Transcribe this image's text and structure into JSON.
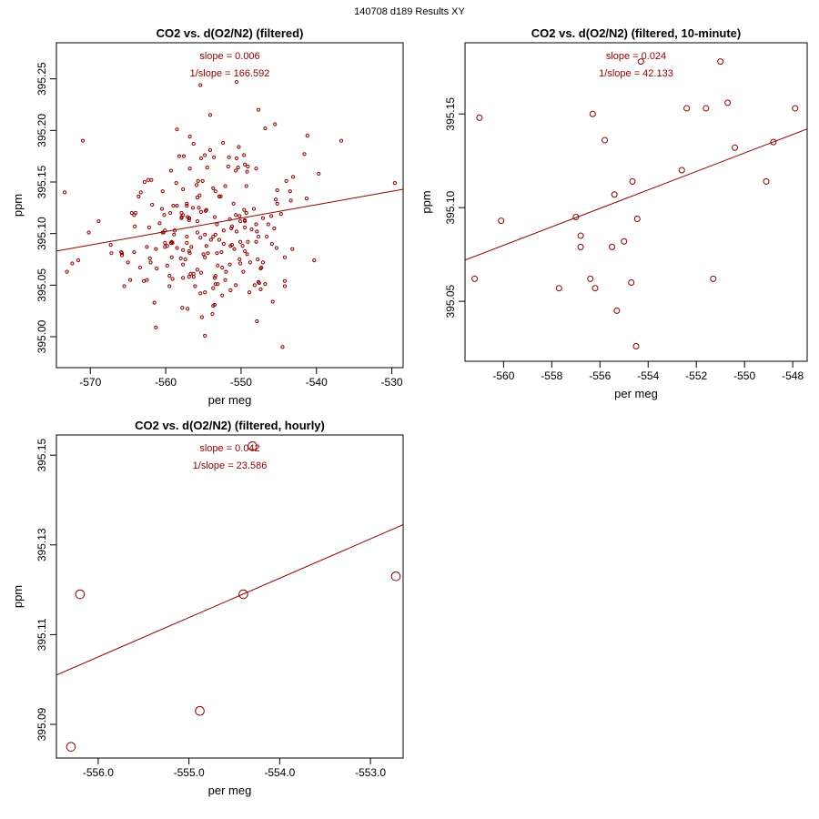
{
  "page_title": "140708   d189   Results XY",
  "colors": {
    "accent": "#8b0000",
    "axis": "#000000",
    "background": "#ffffff"
  },
  "chart_data": [
    {
      "type": "scatter",
      "id": "all",
      "title": "CO2 vs. d(O2/N2) (filtered)",
      "xlabel": "per meg",
      "ylabel": "ppm",
      "xlim": [
        -574.5,
        -528.5
      ],
      "ylim": [
        394.97,
        395.285
      ],
      "xticks": [
        -570,
        -560,
        -550,
        -540,
        -530
      ],
      "yticks": [
        395.0,
        395.05,
        395.1,
        395.15,
        395.2,
        395.25
      ],
      "xtick_labels": [
        "-570",
        "-560",
        "-550",
        "-540",
        "-530"
      ],
      "ytick_labels": [
        "395.00",
        "395.05",
        "395.10",
        "395.15",
        "395.20",
        "395.25"
      ],
      "annotations": [
        "slope = 0.006",
        "1/slope = 166.592"
      ],
      "fit_line": {
        "x": [
          -574.5,
          -528.5
        ],
        "y": [
          395.083,
          395.143
        ]
      },
      "points": {
        "x": [
          -573.4,
          -573.1,
          -572.4,
          -571.6,
          -571,
          -570.2,
          -567.2,
          -565.8,
          -565.5,
          -564.5,
          -562.9,
          -561.3,
          -558.5,
          -555.4,
          -554.8,
          -554.5,
          -553.8,
          -552.4,
          -550.6,
          -549.1,
          -547.7,
          -546.8,
          -545.8,
          -544.5,
          -543.1,
          -541.2,
          -540.3,
          -539.7,
          -536.7,
          -529.6,
          -568.9,
          -567.3,
          -565.9,
          -564.7,
          -565,
          -563.3,
          -559.5,
          -555.4,
          -554.1,
          -552.6,
          -551.4,
          -547.1,
          -545.2,
          -543.4,
          -541.6,
          -553.6,
          -553.7,
          -549.6,
          -548,
          -547.9,
          -547.7,
          -545.4,
          -545.5,
          -554,
          -550.7,
          -550.7,
          -551.2,
          -553.2,
          -549.3,
          -555.5,
          -554.8,
          -556.1,
          -553.4,
          -557.1,
          -557.7,
          -559.3,
          -561.5,
          -562.5,
          -564.2,
          -553.1,
          -545.3,
          -547.4,
          -556.8,
          -556.3,
          -560.1,
          -557.8,
          -555.2,
          -559,
          -556.6,
          -563.4,
          -557.7,
          -548.9,
          -555.3,
          -547.3,
          -554.8,
          -559.2,
          -550.6,
          -549.6,
          -559.5,
          -562.8,
          -557.2,
          -553.2,
          -551.3,
          -556.9,
          -557.2,
          -549.7,
          -553.1,
          -557.2,
          -559.2,
          -557.6,
          -555.8,
          -554.4,
          -559.1,
          -549.5,
          -558.5,
          -555.7,
          -555.6,
          -548.8,
          -549.3,
          -550.1,
          -551.6,
          -553.7,
          -556.3,
          -557.7,
          -551.5,
          -550.4,
          -556.9,
          -553.4,
          -549.5,
          -551.5,
          -564,
          -560.5,
          -550.2,
          -560.2,
          -558.9,
          -553.4,
          -546.8,
          -562.2,
          -549.2,
          -544.2,
          -554.8,
          -549.1,
          -553.7,
          -555.9,
          -558,
          -554.1,
          -549.5,
          -550.1,
          -547.8,
          -553.4,
          -549.8,
          -552.3,
          -546.4,
          -557.4,
          -550.3,
          -550.7,
          -555,
          -553.5,
          -557.9,
          -552.1,
          -548.3,
          -557.1,
          -562.3,
          -558.2,
          -557.9,
          -555.8,
          -556.9,
          -554.6,
          -552.9,
          -552.1,
          -560.8,
          -557.7,
          -562,
          -554.8,
          -558.8,
          -552.5,
          -550.6,
          -553.7,
          -551,
          -555.1,
          -545.9,
          -544.2,
          -549.5,
          -561.2,
          -559.8,
          -548.2,
          -556.7,
          -547.7,
          -554.7,
          -556.8,
          -560.1,
          -562.1,
          -559.8,
          -547.1,
          -552.3,
          -549.5,
          -557.9,
          -560.1,
          -556.9,
          -552.5,
          -555.4,
          -551.4,
          -560.3,
          -555.8,
          -556.4,
          -547.6,
          -544,
          -545.2,
          -543.2,
          -541.3,
          -543.5,
          -548,
          -550.9,
          -552,
          -553.5,
          -561.9,
          -561.3,
          -556.3,
          -556.8,
          -564.1,
          -565.8,
          -560.4,
          -559.4,
          -559.3,
          -557.7,
          -556.9,
          -558.6,
          -555.3,
          -551.7,
          -552.7,
          -550.1,
          -549.2,
          -547.9,
          -544.2,
          -547.4,
          -546,
          -548.6,
          -551.2,
          -553.5,
          -554.6,
          -555.8,
          -557.2,
          -558.5,
          -559.1,
          -560.4,
          -562.5,
          -563.6,
          -548,
          -546.6,
          -545.6,
          -544.7,
          -550.2,
          -552.9,
          -555.3,
          -561.8,
          -564.2
        ],
        "y": [
          395.14,
          395.063,
          395.071,
          395.074,
          395.19,
          395.101,
          395.081,
          395.079,
          395.049,
          395.12,
          395.054,
          395.009,
          395.201,
          395.244,
          395.176,
          395.164,
          395.022,
          395.188,
          395.247,
          395.165,
          395.22,
          395.202,
          395.034,
          394.99,
          395.155,
          395.195,
          395.074,
          395.158,
          395.19,
          395.149,
          395.112,
          395.089,
          395.082,
          395.055,
          395.072,
          395.14,
          395.059,
          395.042,
          395.215,
          395.082,
          395.045,
          395.115,
          395.142,
          395.132,
          395.177,
          395.174,
          395.03,
          395.123,
          395.109,
          395.015,
          395.053,
          395.133,
          395.206,
          395.094,
          395.161,
          395.05,
          395.089,
          395.081,
          395.12,
          395.137,
          395.001,
          395.049,
          395.051,
          395.027,
          395.118,
          395.161,
          395.033,
          395.055,
          395.118,
          395.069,
          395.086,
          395.046,
          395.081,
          395.058,
          395.091,
          395.028,
          395.019,
          395.127,
          395.087,
          395.067,
          395.057,
          395.043,
          395.173,
          395.067,
          395.077,
          395.092,
          395.173,
          395.176,
          395.049,
          395.15,
          395.127,
          395.109,
          395.105,
          395.058,
          395.129,
          395.063,
          395.051,
          395.097,
          395.077,
          395.175,
          395.112,
          395.081,
          395.056,
          395.083,
          395.086,
          395.151,
          395.125,
          395.072,
          395.146,
          395.092,
          395.174,
          395.047,
          395.061,
          395.143,
          395.114,
          395.164,
          395.115,
          395.141,
          395.167,
          395.07,
          395.12,
          395.124,
          395.117,
          395.118,
          395.099,
          395.059,
          395.051,
          395.106,
          395.08,
          395.054,
          395.043,
          395.092,
          395.144,
          395.147,
          395.076,
          395.181,
          395.106,
          395.071,
          395.075,
          395.099,
          395.088,
          395.103,
          395.109,
          395.075,
          395.184,
          395.118,
          395.08,
          395.057,
          395.116,
          395.146,
          395.124,
          395.116,
          395.152,
          395.175,
          395.12,
          395.135,
          395.115,
          395.123,
          395.136,
          395.055,
          395.11,
          395.084,
          395.072,
          395.099,
          395.103,
          395.04,
          395.102,
          395.097,
          395.129,
          395.151,
          395.09,
          395.049,
          395.113,
          395.066,
          395.088,
          395.05,
          395.061,
          395.097,
          395.122,
          395.163,
          395.087,
          395.076,
          395.069,
          395.072,
          395.09,
          395.112,
          395.115,
          395.103,
          395.083,
          395.067,
          395.096,
          395.088,
          395.101,
          395.065,
          395.125,
          395.052,
          395.151,
          395.129,
          395.085,
          395.134,
          395.141,
          395.163,
          395.085,
          395.063,
          395.031,
          395.152,
          395.085,
          395.187,
          395.194,
          395.107,
          395.081,
          395.141,
          395.12,
          395.091,
          395.07,
          395.113,
          395.149,
          395.121,
          395.165,
          395.136,
          395.112,
          395.16,
          395.102,
          395.077,
          395.066,
          395.117,
          395.104,
          395.107,
          395.116,
          395.088,
          395.101,
          395.091,
          395.127,
          395.091,
          395.101,
          395.087,
          395.136,
          395.092,
          395.097,
          395.105,
          395.119,
          395.075,
          395.094,
          395.062,
          395.128,
          395.082
        ]
      },
      "point_size": "small"
    },
    {
      "type": "scatter",
      "id": "ten_minute",
      "title": "CO2 vs. d(O2/N2) (filtered, 10-minute)",
      "xlabel": "per meg",
      "ylabel": "ppm",
      "xlim": [
        -561.6,
        -547.4
      ],
      "ylim": [
        395.018,
        395.188
      ],
      "xticks": [
        -560,
        -558,
        -556,
        -554,
        -552,
        -550,
        -548
      ],
      "yticks": [
        395.05,
        395.1,
        395.15
      ],
      "xtick_labels": [
        "-560",
        "-558",
        "-556",
        "-554",
        "-552",
        "-550",
        "-548"
      ],
      "ytick_labels": [
        "395.05",
        "395.10",
        "395.15"
      ],
      "annotations": [
        "slope = 0.024",
        "1/slope = 42.133"
      ],
      "fit_line": {
        "x": [
          -561.6,
          -547.4
        ],
        "y": [
          395.072,
          395.142
        ]
      },
      "points": {
        "x": [
          -561.2,
          -561.0,
          -560.1,
          -557.7,
          -557.0,
          -556.8,
          -556.8,
          -556.4,
          -556.3,
          -556.2,
          -555.8,
          -555.5,
          -555.4,
          -555.3,
          -555.0,
          -554.7,
          -554.65,
          -554.5,
          -554.45,
          -554.3,
          -552.6,
          -552.4,
          -551.6,
          -551.3,
          -551.0,
          -550.7,
          -550.4,
          -549.1,
          -548.8,
          -547.9
        ],
        "y": [
          395.062,
          395.148,
          395.093,
          395.057,
          395.095,
          395.079,
          395.085,
          395.062,
          395.15,
          395.057,
          395.136,
          395.079,
          395.107,
          395.045,
          395.082,
          395.06,
          395.114,
          395.026,
          395.094,
          395.178,
          395.12,
          395.153,
          395.153,
          395.062,
          395.178,
          395.156,
          395.132,
          395.114,
          395.135,
          395.153
        ]
      },
      "point_size": "medium"
    },
    {
      "type": "scatter",
      "id": "hourly",
      "title": "CO2 vs. d(O2/N2) (filtered, hourly)",
      "xlabel": "per meg",
      "ylabel": "ppm",
      "xlim": [
        -556.46,
        -552.64
      ],
      "ylim": [
        395.0825,
        395.1545
      ],
      "xticks": [
        -556.0,
        -555.0,
        -554.0,
        -553.0
      ],
      "yticks": [
        395.09,
        395.11,
        395.13,
        395.15
      ],
      "xtick_labels": [
        "-556.0",
        "-555.0",
        "-554.0",
        "-553.0"
      ],
      "ytick_labels": [
        "395.09",
        "395.11",
        "395.13",
        "395.15"
      ],
      "annotations": [
        "slope = 0.042",
        "1/slope = 23.586"
      ],
      "fit_line": {
        "x": [
          -556.46,
          -552.64
        ],
        "y": [
          395.101,
          395.1345
        ]
      },
      "points": {
        "x": [
          -556.3,
          -556.2,
          -554.88,
          -554.4,
          -554.3,
          -552.72
        ],
        "y": [
          395.085,
          395.119,
          395.093,
          395.119,
          395.152,
          395.123
        ]
      },
      "point_size": "large"
    }
  ]
}
